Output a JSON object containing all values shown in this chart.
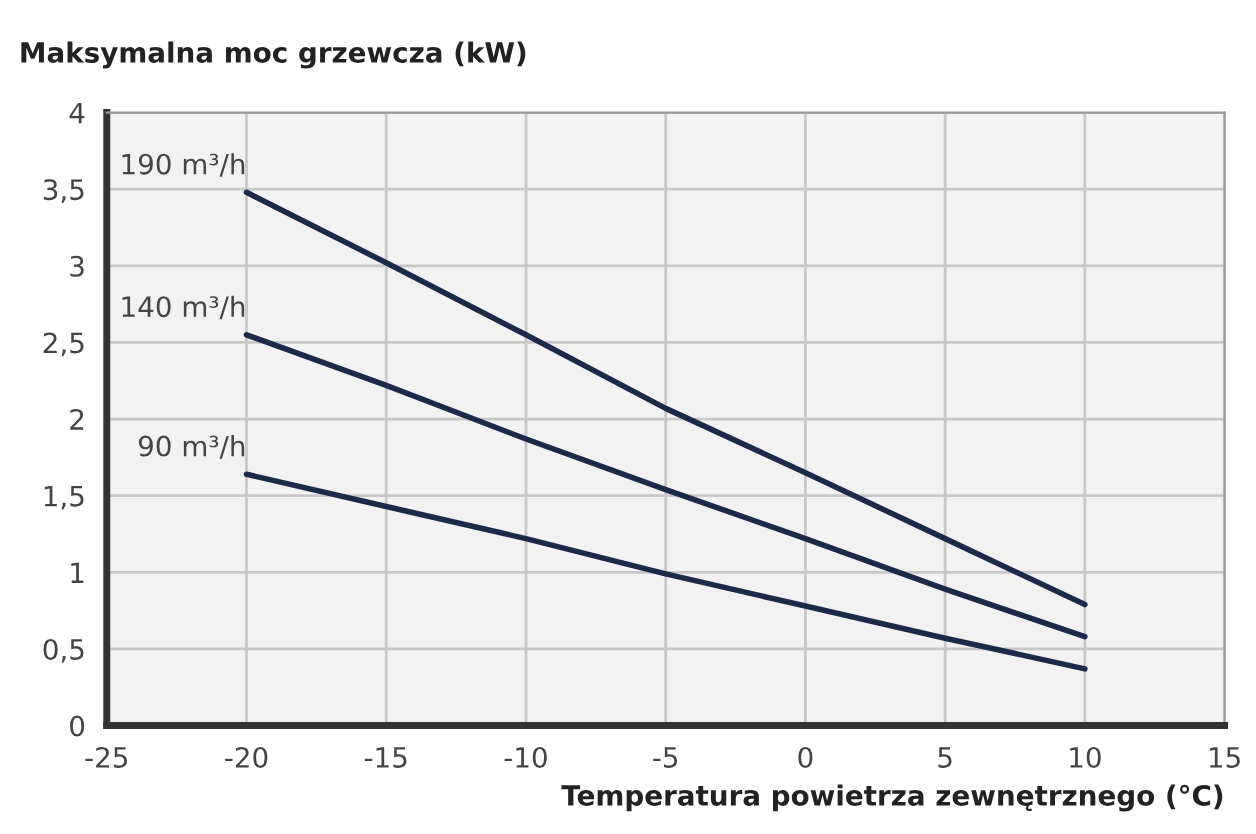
{
  "chart_data": {
    "type": "line",
    "xlabel": "Temperatura powietrza zewnętrznego (°C)",
    "ylabel": "Maksymalna moc grzewcza (kW)",
    "x": [
      -20,
      -15,
      -10,
      -5,
      0,
      5,
      10
    ],
    "series": [
      {
        "name": "190 m³/h",
        "color": "#1c2a4a",
        "values": [
          3.48,
          3.02,
          2.55,
          2.07,
          1.65,
          1.22,
          0.79
        ]
      },
      {
        "name": "140 m³/h",
        "color": "#1c2a4a",
        "values": [
          2.55,
          2.22,
          1.87,
          1.54,
          1.22,
          0.89,
          0.58
        ]
      },
      {
        "name": "90 m³/h",
        "color": "#1c2a4a",
        "values": [
          1.64,
          1.43,
          1.22,
          0.99,
          0.78,
          0.57,
          0.37
        ]
      }
    ],
    "xlim": [
      -25,
      15
    ],
    "xticks": [
      -25,
      -20,
      -15,
      -10,
      -5,
      0,
      5,
      10,
      15
    ],
    "ylim": [
      0,
      4
    ],
    "yticks": [
      0,
      {
        "value": 0.5,
        "label": "0,5"
      },
      1,
      {
        "value": 1.5,
        "label": "1,5"
      },
      2,
      {
        "value": 2.5,
        "label": "2,5"
      },
      3,
      {
        "value": 3.5,
        "label": "3,5"
      },
      4
    ],
    "grid": true,
    "marker": "none",
    "line_style": "solid"
  }
}
